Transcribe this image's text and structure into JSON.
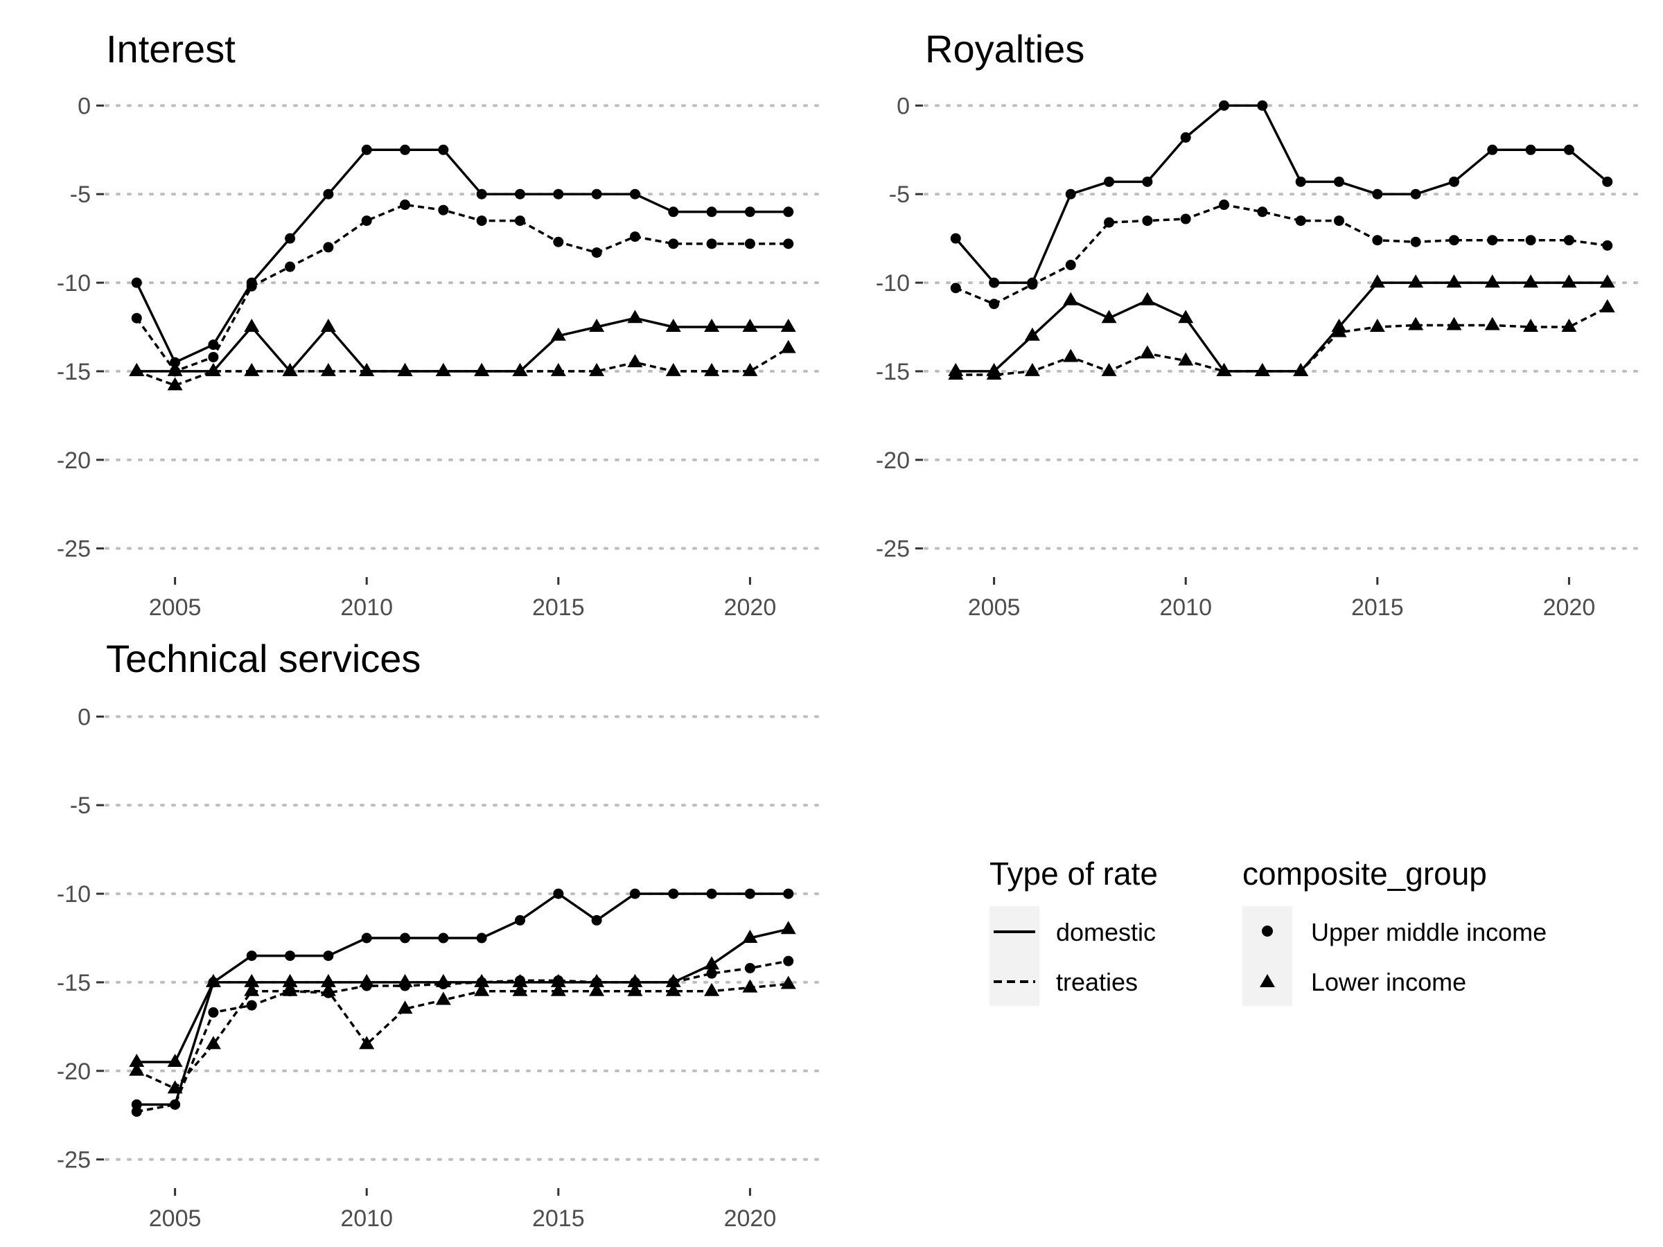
{
  "chart_data": [
    {
      "type": "line",
      "title": "Interest",
      "xlabel": "",
      "ylabel": "",
      "x": [
        2004,
        2005,
        2006,
        2007,
        2008,
        2009,
        2010,
        2011,
        2012,
        2013,
        2014,
        2015,
        2016,
        2017,
        2018,
        2019,
        2020,
        2021
      ],
      "xlim": [
        2003.2,
        2021.8
      ],
      "ylim": [
        -26.5,
        1.5
      ],
      "xticks": [
        2005,
        2010,
        2015,
        2020
      ],
      "yticks": [
        0,
        -5,
        -10,
        -15,
        -20,
        -25
      ],
      "grid": "horizontal dotted",
      "series": [
        {
          "rate": "domestic",
          "group": "Upper middle income",
          "values": [
            -10,
            -14.5,
            -13.5,
            -10,
            -7.5,
            -5,
            -2.5,
            -2.5,
            -2.5,
            -5,
            -5,
            -5,
            -5,
            -5,
            -6,
            -6,
            -6,
            -6
          ]
        },
        {
          "rate": "treaties",
          "group": "Upper middle income",
          "values": [
            -12,
            -15,
            -14.2,
            -10.2,
            -9.1,
            -8,
            -6.5,
            -5.6,
            -5.9,
            -6.5,
            -6.5,
            -7.7,
            -8.3,
            -7.4,
            -7.8,
            -7.8,
            -7.8,
            -7.8
          ]
        },
        {
          "rate": "domestic",
          "group": "Lower income",
          "values": [
            -15,
            -15,
            -15,
            -12.5,
            -15,
            -12.5,
            -15,
            -15,
            -15,
            -15,
            -15,
            -13,
            -12.5,
            -12,
            -12.5,
            -12.5,
            -12.5,
            -12.5
          ]
        },
        {
          "rate": "treaties",
          "group": "Lower income",
          "values": [
            -15,
            -15.8,
            -15,
            -15,
            -15,
            -15,
            -15,
            -15,
            -15,
            -15,
            -15,
            -15,
            -15,
            -14.5,
            -15,
            -15,
            -15,
            -13.7
          ]
        }
      ]
    },
    {
      "type": "line",
      "title": "Royalties",
      "xlabel": "",
      "ylabel": "",
      "x": [
        2004,
        2005,
        2006,
        2007,
        2008,
        2009,
        2010,
        2011,
        2012,
        2013,
        2014,
        2015,
        2016,
        2017,
        2018,
        2019,
        2020,
        2021
      ],
      "xlim": [
        2003.2,
        2021.8
      ],
      "ylim": [
        -26.5,
        1.5
      ],
      "xticks": [
        2005,
        2010,
        2015,
        2020
      ],
      "yticks": [
        0,
        -5,
        -10,
        -15,
        -20,
        -25
      ],
      "grid": "horizontal dotted",
      "series": [
        {
          "rate": "domestic",
          "group": "Upper middle income",
          "values": [
            -7.5,
            -10,
            -10,
            -5,
            -4.3,
            -4.3,
            -1.8,
            0,
            0,
            -4.3,
            -4.3,
            -5,
            -5,
            -4.3,
            -2.5,
            -2.5,
            -2.5,
            -4.3
          ]
        },
        {
          "rate": "treaties",
          "group": "Upper middle income",
          "values": [
            -10.3,
            -11.2,
            -10.1,
            -9,
            -6.6,
            -6.5,
            -6.4,
            -5.6,
            -6,
            -6.5,
            -6.5,
            -7.6,
            -7.7,
            -7.6,
            -7.6,
            -7.6,
            -7.6,
            -7.9
          ]
        },
        {
          "rate": "domestic",
          "group": "Lower income",
          "values": [
            -15,
            -15,
            -13,
            -11,
            -12,
            -11,
            -12,
            -15,
            -15,
            -15,
            -12.5,
            -10,
            -10,
            -10,
            -10,
            -10,
            -10,
            -10
          ]
        },
        {
          "rate": "treaties",
          "group": "Lower income",
          "values": [
            -15.2,
            -15.2,
            -15,
            -14.2,
            -15,
            -14,
            -14.4,
            -15,
            -15,
            -15,
            -12.8,
            -12.5,
            -12.4,
            -12.4,
            -12.4,
            -12.5,
            -12.5,
            -11.4
          ]
        }
      ]
    },
    {
      "type": "line",
      "title": "Technical services",
      "xlabel": "",
      "ylabel": "",
      "x": [
        2004,
        2005,
        2006,
        2007,
        2008,
        2009,
        2010,
        2011,
        2012,
        2013,
        2014,
        2015,
        2016,
        2017,
        2018,
        2019,
        2020,
        2021
      ],
      "xlim": [
        2003.2,
        2021.8
      ],
      "ylim": [
        -26.5,
        1.5
      ],
      "xticks": [
        2005,
        2010,
        2015,
        2020
      ],
      "yticks": [
        0,
        -5,
        -10,
        -15,
        -20,
        -25
      ],
      "grid": "horizontal dotted",
      "series": [
        {
          "rate": "domestic",
          "group": "Upper middle income",
          "values": [
            -21.9,
            -21.9,
            -15,
            -13.5,
            -13.5,
            -13.5,
            -12.5,
            -12.5,
            -12.5,
            -12.5,
            -11.5,
            -10,
            -11.5,
            -10,
            -10,
            -10,
            -10,
            -10
          ]
        },
        {
          "rate": "treaties",
          "group": "Upper middle income",
          "values": [
            -22.3,
            -21.9,
            -16.7,
            -16.3,
            -15.5,
            -15.6,
            -15.2,
            -15.2,
            -15.1,
            -15,
            -14.9,
            -14.9,
            -15,
            -15,
            -15,
            -14.5,
            -14.2,
            -13.8
          ]
        },
        {
          "rate": "domestic",
          "group": "Lower income",
          "values": [
            -19.5,
            -19.5,
            -15,
            -15,
            -15,
            -15,
            -15,
            -15,
            -15,
            -15,
            -15,
            -15,
            -15,
            -15,
            -15,
            -14,
            -12.5,
            -12
          ]
        },
        {
          "rate": "treaties",
          "group": "Lower income",
          "values": [
            -20,
            -21,
            -18.5,
            -15.5,
            -15.5,
            -15.5,
            -18.5,
            -16.5,
            -16,
            -15.5,
            -15.5,
            -15.5,
            -15.5,
            -15.5,
            -15.5,
            -15.5,
            -15.3,
            -15.1
          ]
        }
      ]
    }
  ],
  "legend": {
    "placement": "bottom-right",
    "rate": {
      "title": "Type of rate",
      "items": [
        {
          "key": "domestic",
          "label": "domestic",
          "linetype": "solid"
        },
        {
          "key": "treaties",
          "label": "treaties",
          "linetype": "dashed"
        }
      ]
    },
    "group": {
      "title": "composite_group",
      "items": [
        {
          "key": "Upper middle income",
          "label": "Upper middle income",
          "shape": "circle"
        },
        {
          "key": "Lower income",
          "label": "Lower income",
          "shape": "triangle"
        }
      ]
    }
  },
  "colors": {
    "ink": "#000000",
    "tick_text": "#4d4d4d",
    "grid": "#bdbdbd",
    "legend_key_bg": "#f2f2f2"
  }
}
